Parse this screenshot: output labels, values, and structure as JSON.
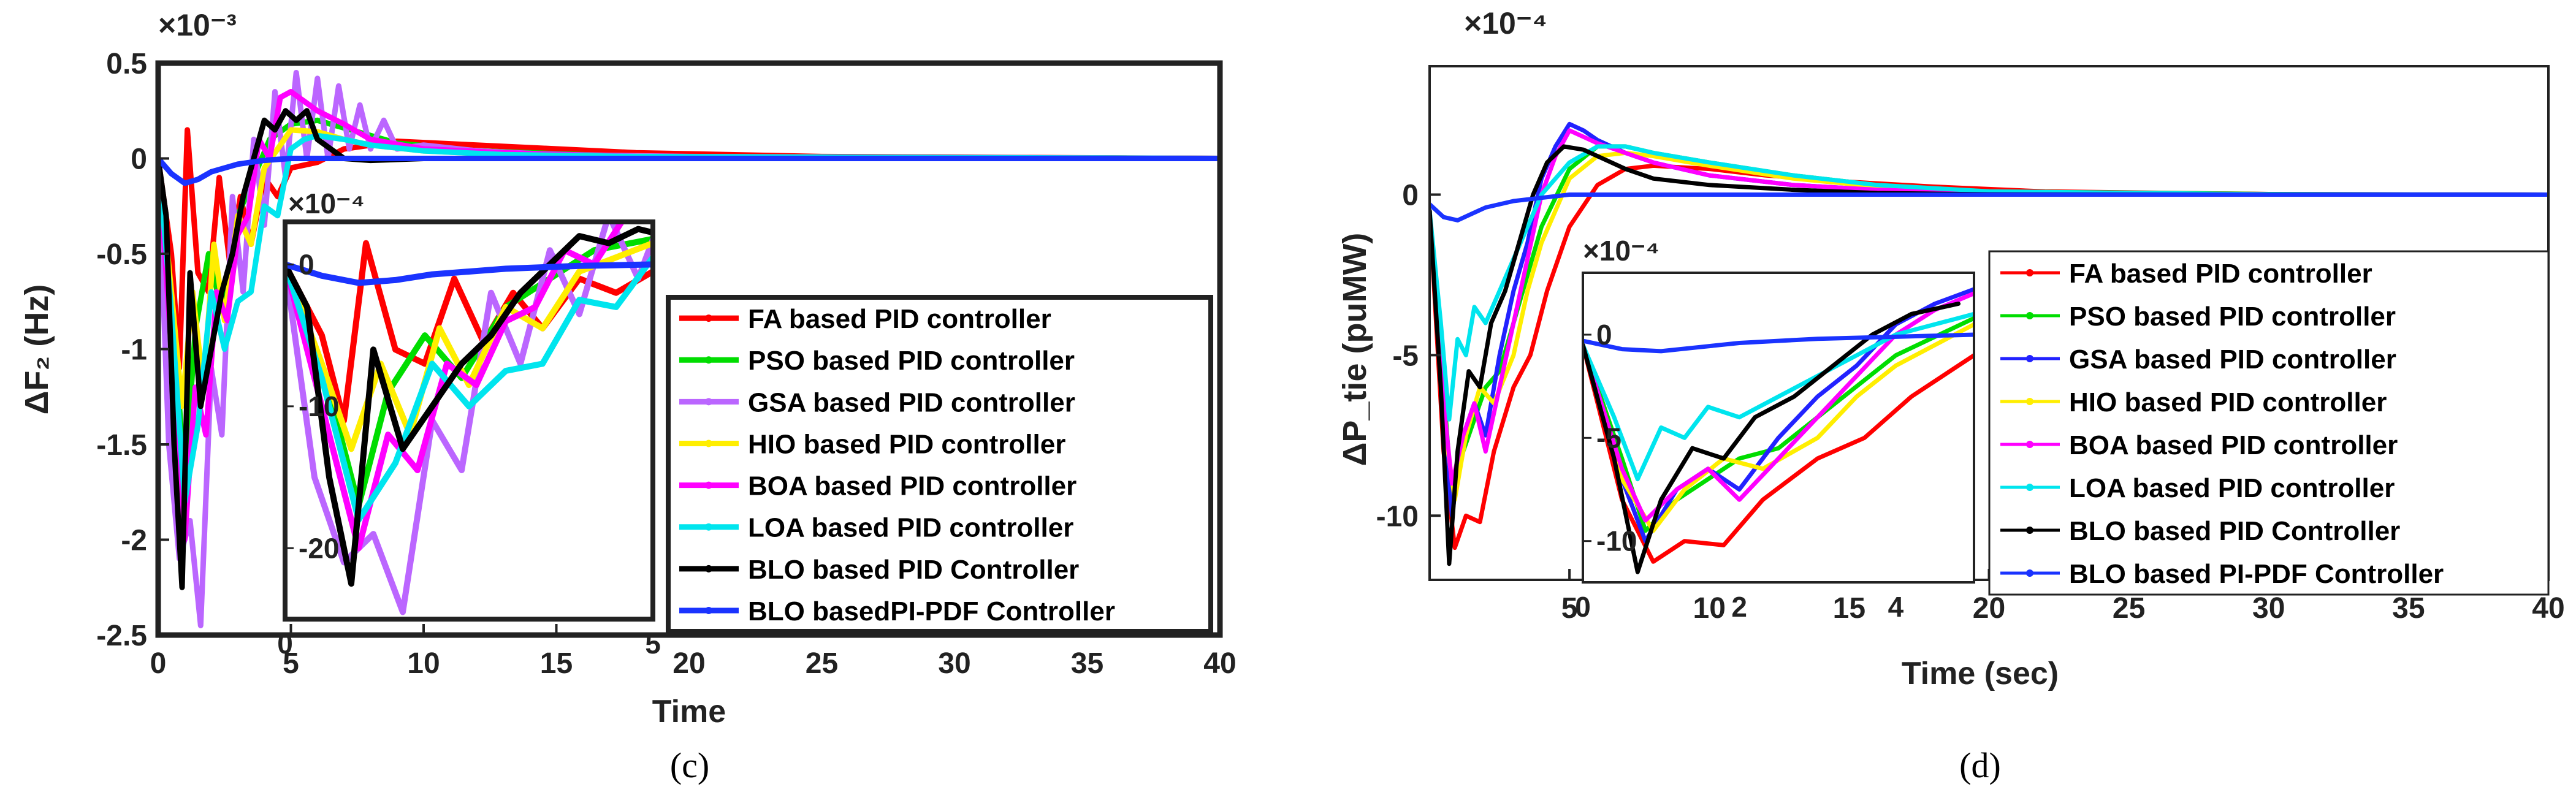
{
  "chart_data": [
    {
      "type": "line",
      "panel_caption": "(c)",
      "ylabel": "ΔF₂ (Hz)",
      "xlabel": "Time",
      "exponent": "×10⁻³",
      "xlim": [
        0,
        40
      ],
      "ylim": [
        -2.5,
        0.5
      ],
      "xticks": [
        "0",
        "5",
        "10",
        "15",
        "20",
        "25",
        "30",
        "35",
        "40"
      ],
      "yticks": [
        "0.5",
        "0",
        "-0.5",
        "-1",
        "-1.5",
        "-2",
        "-2.5"
      ],
      "series": [
        {
          "name": "FA based PID controller",
          "color": "#ff0000",
          "x": [
            0,
            0.5,
            0.8,
            1.1,
            1.5,
            1.9,
            2.3,
            2.7,
            3.1,
            3.5,
            4,
            4.5,
            5,
            6,
            7,
            9,
            12,
            18,
            25,
            40
          ],
          "y": [
            0,
            -0.5,
            -1.1,
            0.15,
            -0.6,
            -0.7,
            -0.1,
            -0.55,
            -0.2,
            -0.45,
            -0.1,
            -0.2,
            -0.05,
            -0.02,
            0.05,
            0.09,
            0.07,
            0.03,
            0.01,
            0
          ]
        },
        {
          "name": "PSO based PID controller",
          "color": "#00dd00",
          "x": [
            0,
            0.6,
            1,
            1.4,
            1.9,
            2.4,
            3,
            3.6,
            4.2,
            5,
            6,
            7,
            9,
            12,
            18,
            40
          ],
          "y": [
            0,
            -0.9,
            -1.7,
            -0.9,
            -0.5,
            -0.8,
            -0.3,
            -0.1,
            0.1,
            0.18,
            0.2,
            0.16,
            0.08,
            0.04,
            0.01,
            0
          ]
        },
        {
          "name": "GSA based PID controller",
          "color": "#bb66ff",
          "x": [
            0,
            0.4,
            0.8,
            1.2,
            1.6,
            2,
            2.4,
            2.8,
            3.2,
            3.6,
            4,
            4.4,
            4.8,
            5.2,
            5.6,
            6,
            6.4,
            6.8,
            7.2,
            7.6,
            8,
            8.5,
            9,
            10,
            12,
            15,
            20,
            40
          ],
          "y": [
            0,
            -1.5,
            -2.1,
            -1.9,
            -2.45,
            -1.1,
            -1.45,
            -0.2,
            -0.7,
            0.1,
            -0.35,
            0.35,
            -0.1,
            0.45,
            0.0,
            0.42,
            0.0,
            0.38,
            0.05,
            0.28,
            0.05,
            0.2,
            0.05,
            0.07,
            0.04,
            0.02,
            0.01,
            0
          ]
        },
        {
          "name": "HIO based PID controller",
          "color": "#ffee00",
          "x": [
            0,
            0.5,
            0.9,
            1.3,
            1.7,
            2.1,
            2.5,
            3,
            3.5,
            4,
            4.5,
            5,
            6,
            7,
            8,
            10,
            13,
            18,
            40
          ],
          "y": [
            0,
            -0.7,
            -1.3,
            -0.7,
            -1.2,
            -0.45,
            -0.85,
            -0.3,
            -0.45,
            -0.05,
            0.05,
            0.15,
            0.14,
            0.1,
            0.07,
            0.04,
            0.02,
            0.01,
            0
          ]
        },
        {
          "name": "BOA based PID controller",
          "color": "#ff00ff",
          "x": [
            0,
            0.5,
            1,
            1.4,
            1.8,
            2.2,
            2.6,
            3,
            3.4,
            3.8,
            4.2,
            4.6,
            5,
            5.5,
            6,
            7,
            8,
            10,
            13,
            18,
            40
          ],
          "y": [
            0,
            -1.0,
            -2.0,
            -1.2,
            -1.45,
            -0.7,
            -0.85,
            -0.4,
            -0.3,
            0.1,
            0.0,
            0.32,
            0.35,
            0.3,
            0.25,
            0.18,
            0.1,
            0.05,
            0.03,
            0.01,
            0
          ]
        },
        {
          "name": "LOA based PID controller",
          "color": "#00e5ee",
          "x": [
            0,
            0.5,
            1,
            1.5,
            2,
            2.5,
            3,
            3.5,
            4,
            4.5,
            5,
            5.5,
            6,
            7,
            8,
            10,
            13,
            18,
            40
          ],
          "y": [
            0,
            -0.8,
            -1.8,
            -1.4,
            -0.7,
            -1.0,
            -0.75,
            -0.7,
            -0.25,
            -0.3,
            0.05,
            0.1,
            0.12,
            0.1,
            0.07,
            0.04,
            0.02,
            0.01,
            0
          ]
        },
        {
          "name": "BLO based PID Controller",
          "color": "#000000",
          "x": [
            0,
            0.3,
            0.6,
            0.9,
            1.2,
            1.6,
            2,
            2.4,
            2.8,
            3.2,
            3.6,
            4,
            4.4,
            4.8,
            5.2,
            5.6,
            6,
            6.5,
            7,
            8,
            10,
            15,
            40
          ],
          "y": [
            0,
            -0.3,
            -1.5,
            -2.25,
            -0.6,
            -1.3,
            -1.0,
            -0.7,
            -0.5,
            -0.2,
            0.0,
            0.2,
            0.15,
            0.25,
            0.2,
            0.25,
            0.1,
            0.05,
            0.0,
            -0.01,
            0,
            0,
            0
          ]
        },
        {
          "name": "BLO basedPI-PDF Controller",
          "color": "#1a33ff",
          "x": [
            0,
            0.5,
            1,
            1.5,
            2,
            3,
            4,
            5,
            7,
            10,
            15,
            20,
            30,
            40
          ],
          "y": [
            0,
            -0.08,
            -0.13,
            -0.11,
            -0.07,
            -0.03,
            -0.01,
            0,
            0,
            0,
            0,
            0,
            0,
            0
          ]
        }
      ],
      "inset": {
        "exponent": "×10⁻⁴",
        "xlim": [
          0,
          5
        ],
        "ylim": [
          -25,
          3
        ],
        "xticks": [
          "0",
          "5"
        ],
        "yticks": [
          "0",
          "-10",
          "-20"
        ]
      }
    },
    {
      "type": "line",
      "panel_caption": "(d)",
      "ylabel": "ΔP_tie (puMW)",
      "xlabel": "Time (sec)",
      "exponent": "×10⁻⁴",
      "xlim": [
        0,
        40
      ],
      "ylim": [
        -12,
        4
      ],
      "xticks": [
        "5",
        "10",
        "15",
        "20",
        "25",
        "30",
        "35",
        "40"
      ],
      "yticks": [
        "0",
        "-5",
        "-10"
      ],
      "series": [
        {
          "name": "FA based PID controller",
          "color": "#ff0000",
          "x": [
            0,
            0.5,
            0.9,
            1.3,
            1.8,
            2.3,
            3,
            3.6,
            4.2,
            5,
            6,
            7,
            8,
            10,
            12,
            15,
            18,
            22,
            30,
            40
          ],
          "y": [
            -0.5,
            -8,
            -11,
            -10,
            -10.2,
            -8,
            -6,
            -5,
            -3,
            -1,
            0.3,
            0.8,
            0.9,
            0.8,
            0.6,
            0.4,
            0.25,
            0.1,
            0.02,
            0
          ]
        },
        {
          "name": "PSO based PID controller",
          "color": "#00dd00",
          "x": [
            0,
            0.5,
            0.8,
            1.2,
            1.6,
            2,
            2.5,
            3,
            3.5,
            4,
            5,
            6,
            7,
            8,
            10,
            13,
            16,
            20,
            30,
            40
          ],
          "y": [
            -0.5,
            -6,
            -9.5,
            -8,
            -7,
            -6,
            -5.5,
            -4,
            -2.5,
            -1,
            0.8,
            1.5,
            1.5,
            1.3,
            1,
            0.6,
            0.3,
            0.1,
            0.02,
            0
          ]
        },
        {
          "name": "GSA based PID controller",
          "color": "#2222ff",
          "x": [
            0,
            0.5,
            0.8,
            1.2,
            1.6,
            2,
            2.5,
            3,
            3.5,
            4,
            4.5,
            5,
            5.5,
            6,
            7,
            8,
            10,
            13,
            16,
            20,
            30,
            40
          ],
          "y": [
            -0.5,
            -7,
            -10,
            -7.5,
            -6.5,
            -7.5,
            -5,
            -3,
            -1.5,
            0.5,
            1.5,
            2.2,
            2,
            1.7,
            1.3,
            1,
            0.6,
            0.3,
            0.15,
            0.05,
            0.01,
            0
          ]
        },
        {
          "name": "HIO based PID controller",
          "color": "#ffee00",
          "x": [
            0,
            0.5,
            0.9,
            1.3,
            1.8,
            2.3,
            3,
            3.5,
            4,
            5,
            6,
            7,
            8,
            10,
            13,
            16,
            20,
            30,
            40
          ],
          "y": [
            -0.5,
            -7,
            -9.5,
            -7.5,
            -6,
            -6.5,
            -5,
            -3,
            -1.5,
            0.5,
            1.2,
            1.3,
            1.2,
            0.9,
            0.5,
            0.25,
            0.08,
            0.01,
            0
          ]
        },
        {
          "name": "BOA based PID controller",
          "color": "#ff00ff",
          "x": [
            0,
            0.5,
            0.8,
            1.2,
            1.6,
            2,
            2.5,
            3,
            3.5,
            4,
            4.5,
            5,
            5.5,
            6,
            7,
            8,
            10,
            13,
            16,
            20,
            30,
            40
          ],
          "y": [
            -0.5,
            -6.5,
            -9,
            -7.5,
            -6.5,
            -8,
            -6,
            -4,
            -2,
            0,
            1.2,
            2,
            1.8,
            1.6,
            1.3,
            1,
            0.6,
            0.3,
            0.15,
            0.05,
            0.01,
            0
          ]
        },
        {
          "name": "LOA based PID controller",
          "color": "#00e5ee",
          "x": [
            0,
            0.4,
            0.7,
            1,
            1.3,
            1.6,
            2,
            2.5,
            3,
            3.5,
            4,
            5,
            6,
            7,
            8,
            10,
            13,
            16,
            20,
            30,
            40
          ],
          "y": [
            -0.5,
            -4,
            -7,
            -4.5,
            -5,
            -3.5,
            -4,
            -3,
            -2,
            -1,
            0,
            1,
            1.5,
            1.5,
            1.3,
            1,
            0.6,
            0.3,
            0.1,
            0.01,
            0
          ]
        },
        {
          "name": "BLO based PID Controller",
          "color": "#000000",
          "x": [
            0,
            0.4,
            0.7,
            1,
            1.4,
            1.8,
            2.2,
            2.7,
            3.2,
            3.7,
            4.2,
            4.8,
            5.5,
            6,
            7,
            8,
            10,
            13,
            16,
            20,
            30,
            40
          ],
          "y": [
            -0.5,
            -6,
            -11.5,
            -8,
            -5.5,
            -6,
            -4,
            -3,
            -1.5,
            0,
            1,
            1.5,
            1.4,
            1.2,
            0.8,
            0.5,
            0.3,
            0.15,
            0.05,
            0.01,
            0,
            0
          ]
        },
        {
          "name": "BLO based PI-PDF Controller",
          "color": "#1a33ff",
          "x": [
            0,
            0.5,
            1,
            1.5,
            2,
            3,
            4,
            5,
            7,
            10,
            15,
            20,
            30,
            40
          ],
          "y": [
            -0.3,
            -0.7,
            -0.8,
            -0.6,
            -0.4,
            -0.2,
            -0.1,
            0,
            0,
            0,
            0,
            0,
            0,
            0
          ]
        }
      ],
      "inset": {
        "exponent": "×10⁻⁴",
        "xlim": [
          0,
          5
        ],
        "ylim": [
          -12,
          3
        ],
        "xticks": [
          "0",
          "2",
          "4"
        ],
        "yticks": [
          "0",
          "-5",
          "-10"
        ]
      }
    }
  ]
}
